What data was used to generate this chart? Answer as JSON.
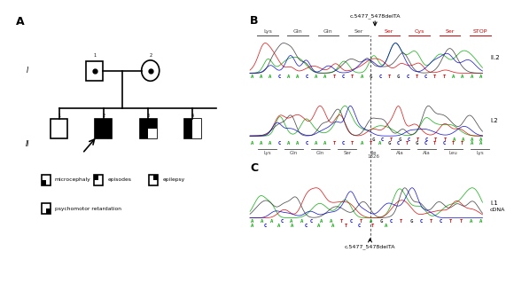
{
  "bg_color": "#ffffff",
  "panel_A_label": "A",
  "panel_B_label": "B",
  "panel_C_label": "C",
  "gen_I_label": "I",
  "gen_II_label": "II",
  "mutation_label": "c.5477_5478delTA",
  "amino_acids_wt": [
    "Lys",
    "Gln",
    "Gln",
    "Ser",
    "Ser",
    "Cys",
    "Ser",
    "STOP"
  ],
  "amino_acids_mut_color": [
    false,
    false,
    false,
    false,
    true,
    true,
    true,
    true
  ],
  "seq_II2": "AAACAACAATCTAGCTGCTCTTAAAA",
  "seq_I2_top": "GCTGCTCTTAAAA",
  "seq_I2_bot": "AAACAACAATCTATAGCTGCTCTTAA",
  "amino_acids_bot": [
    "Lys",
    "Gln",
    "Gln",
    "Ser",
    "Ile|1826",
    "Ala",
    "Ala",
    "Leu",
    "Lys"
  ],
  "seq_I1_top": "AAACAACAATCTAGCTGCTCTTAA",
  "seq_I1_bot": "ACAACAATCTA",
  "label_II2": "II.2",
  "label_I2": "I.2",
  "label_I1": "I.1",
  "label_cdna": "cDNA",
  "mut_label_bot": "c.5477_5478delTA",
  "base_colors_A": "#00aa00",
  "base_colors_T": "#dd0000",
  "base_colors_G": "#333333",
  "base_colors_C": "#0000cc",
  "lw": 1.2,
  "fs_panel": 9,
  "fs_seq": 4,
  "fs_aa": 4.5,
  "fs_label": 5.5
}
